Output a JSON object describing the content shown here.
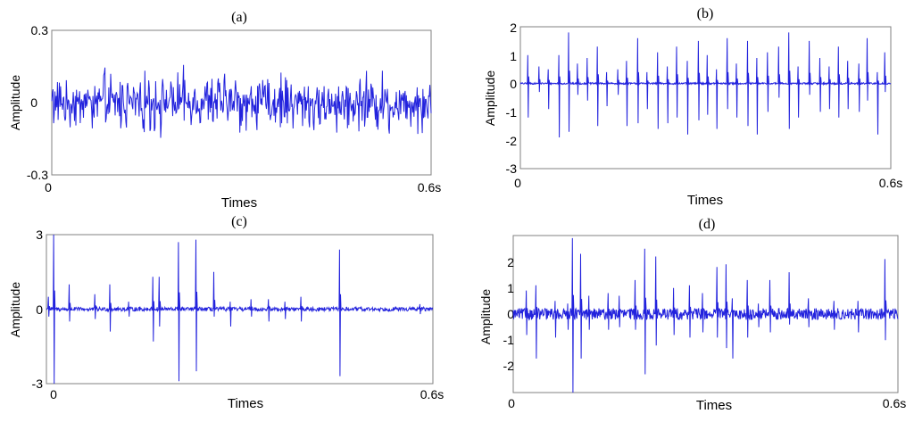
{
  "chart_data": [
    {
      "type": "line",
      "title": "(a)",
      "xlabel": "Times",
      "ylabel": "Amplitude",
      "xlim": [
        0,
        0.6
      ],
      "ylim": [
        -0.3,
        0.3
      ],
      "x_ticks": [
        "0",
        "0.6s"
      ],
      "y_ticks": [
        "0.3",
        "0",
        "-0.3"
      ],
      "y_tick_values": [
        0.3,
        0,
        -0.3
      ],
      "signal": {
        "kind": "noise",
        "points": 600,
        "noise_amplitude": 0.12,
        "spikes": []
      },
      "series": [
        {
          "color": "#2222dd"
        }
      ]
    },
    {
      "type": "line",
      "title": "(b)",
      "xlabel": "Times",
      "ylabel": "Amplitude",
      "xlim": [
        0,
        0.6
      ],
      "ylim": [
        -3,
        2
      ],
      "x_ticks": [
        "0",
        "0.6s"
      ],
      "y_ticks": [
        "2",
        "1",
        "0",
        "-1",
        "-2",
        "-3"
      ],
      "y_tick_values": [
        2,
        1,
        0,
        -1,
        -2,
        -3
      ],
      "signal": {
        "kind": "impulses",
        "points": 800,
        "noise_amplitude": 0.03,
        "spikes": [
          [
            0.012,
            1.0,
            -1.2
          ],
          [
            0.03,
            0.6,
            -0.3
          ],
          [
            0.045,
            0.5,
            -0.9
          ],
          [
            0.062,
            1.0,
            -1.9
          ],
          [
            0.078,
            1.8,
            -1.7
          ],
          [
            0.092,
            0.7,
            -0.4
          ],
          [
            0.108,
            0.9,
            -0.6
          ],
          [
            0.125,
            1.3,
            -1.5
          ],
          [
            0.14,
            0.4,
            -0.8
          ],
          [
            0.158,
            0.5,
            -0.4
          ],
          [
            0.172,
            0.8,
            -1.5
          ],
          [
            0.19,
            1.6,
            -1.4
          ],
          [
            0.205,
            0.4,
            -0.9
          ],
          [
            0.222,
            1.1,
            -1.6
          ],
          [
            0.238,
            0.6,
            -1.4
          ],
          [
            0.253,
            1.3,
            -1.2
          ],
          [
            0.27,
            0.8,
            -1.8
          ],
          [
            0.288,
            1.5,
            -1.3
          ],
          [
            0.303,
            1.0,
            -1.1
          ],
          [
            0.318,
            0.5,
            -1.6
          ],
          [
            0.335,
            1.6,
            -0.9
          ],
          [
            0.35,
            0.7,
            -1.2
          ],
          [
            0.368,
            1.5,
            -1.5
          ],
          [
            0.383,
            0.9,
            -1.8
          ],
          [
            0.4,
            1.1,
            -1.0
          ],
          [
            0.418,
            1.3,
            -0.5
          ],
          [
            0.435,
            1.8,
            -1.6
          ],
          [
            0.45,
            0.6,
            -1.2
          ],
          [
            0.468,
            1.5,
            -0.4
          ],
          [
            0.485,
            0.9,
            -1.0
          ],
          [
            0.5,
            0.6,
            -0.9
          ],
          [
            0.515,
            1.3,
            -1.2
          ],
          [
            0.53,
            0.8,
            -0.9
          ],
          [
            0.548,
            0.7,
            -1.0
          ],
          [
            0.562,
            1.6,
            -0.6
          ],
          [
            0.578,
            0.4,
            -1.8
          ],
          [
            0.59,
            1.1,
            -0.3
          ]
        ]
      },
      "series": [
        {
          "color": "#2222dd"
        }
      ]
    },
    {
      "type": "line",
      "title": "(c)",
      "xlabel": "Times",
      "ylabel": "Amplitude",
      "xlim": [
        0,
        0.6
      ],
      "ylim": [
        -3,
        3
      ],
      "x_ticks": [
        "0",
        "0.6s"
      ],
      "y_ticks": [
        "3",
        "0",
        "-3"
      ],
      "y_tick_values": [
        3,
        0,
        -3
      ],
      "signal": {
        "kind": "impulses",
        "points": 800,
        "noise_amplitude": 0.08,
        "spikes": [
          [
            0.003,
            0.5,
            -0.3
          ],
          [
            0.011,
            3.0,
            -3.0
          ],
          [
            0.035,
            1.0,
            -0.5
          ],
          [
            0.075,
            0.6,
            -0.4
          ],
          [
            0.098,
            1.0,
            -0.9
          ],
          [
            0.128,
            0.3,
            -0.3
          ],
          [
            0.165,
            1.3,
            -1.3
          ],
          [
            0.175,
            1.3,
            -0.7
          ],
          [
            0.205,
            2.7,
            -2.9
          ],
          [
            0.232,
            2.8,
            -2.5
          ],
          [
            0.26,
            1.5,
            -0.3
          ],
          [
            0.285,
            0.3,
            -0.7
          ],
          [
            0.318,
            0.4,
            -0.3
          ],
          [
            0.345,
            0.4,
            -0.5
          ],
          [
            0.37,
            0.3,
            -0.4
          ],
          [
            0.395,
            0.5,
            -0.5
          ],
          [
            0.455,
            2.4,
            -2.7
          ],
          [
            0.58,
            0.2,
            -0.2
          ]
        ]
      },
      "series": [
        {
          "color": "#2222dd"
        }
      ]
    },
    {
      "type": "line",
      "title": "(d)",
      "xlabel": "Times",
      "ylabel": "Amplitude",
      "xlim": [
        0,
        0.6
      ],
      "ylim": [
        -3,
        3
      ],
      "x_ticks": [
        "0",
        "0.6s"
      ],
      "y_ticks": [
        "2",
        "1",
        "0",
        "-1",
        "-2"
      ],
      "y_tick_values": [
        2,
        1,
        0,
        -1,
        -2
      ],
      "signal": {
        "kind": "impulses",
        "points": 800,
        "noise_amplitude": 0.22,
        "spikes": [
          [
            0.02,
            0.9,
            -0.8
          ],
          [
            0.035,
            1.1,
            -1.7
          ],
          [
            0.065,
            0.5,
            -0.9
          ],
          [
            0.085,
            0.4,
            -0.6
          ],
          [
            0.092,
            2.9,
            -3.0
          ],
          [
            0.105,
            2.3,
            -1.7
          ],
          [
            0.118,
            0.7,
            -0.6
          ],
          [
            0.148,
            0.8,
            -0.6
          ],
          [
            0.165,
            0.7,
            -0.5
          ],
          [
            0.19,
            1.3,
            -0.6
          ],
          [
            0.205,
            2.5,
            -2.3
          ],
          [
            0.222,
            2.2,
            -1.2
          ],
          [
            0.25,
            1.0,
            -0.8
          ],
          [
            0.275,
            1.1,
            -0.9
          ],
          [
            0.295,
            0.8,
            -0.7
          ],
          [
            0.318,
            1.8,
            -0.9
          ],
          [
            0.332,
            1.9,
            -1.3
          ],
          [
            0.342,
            0.6,
            -1.7
          ],
          [
            0.365,
            1.3,
            -0.9
          ],
          [
            0.382,
            0.4,
            -0.5
          ],
          [
            0.4,
            1.3,
            -0.7
          ],
          [
            0.43,
            1.6,
            -0.4
          ],
          [
            0.46,
            0.6,
            -0.5
          ],
          [
            0.5,
            0.5,
            -0.6
          ],
          [
            0.538,
            0.5,
            -0.7
          ],
          [
            0.58,
            2.1,
            -1.0
          ]
        ]
      },
      "series": [
        {
          "color": "#2222dd"
        }
      ]
    }
  ]
}
